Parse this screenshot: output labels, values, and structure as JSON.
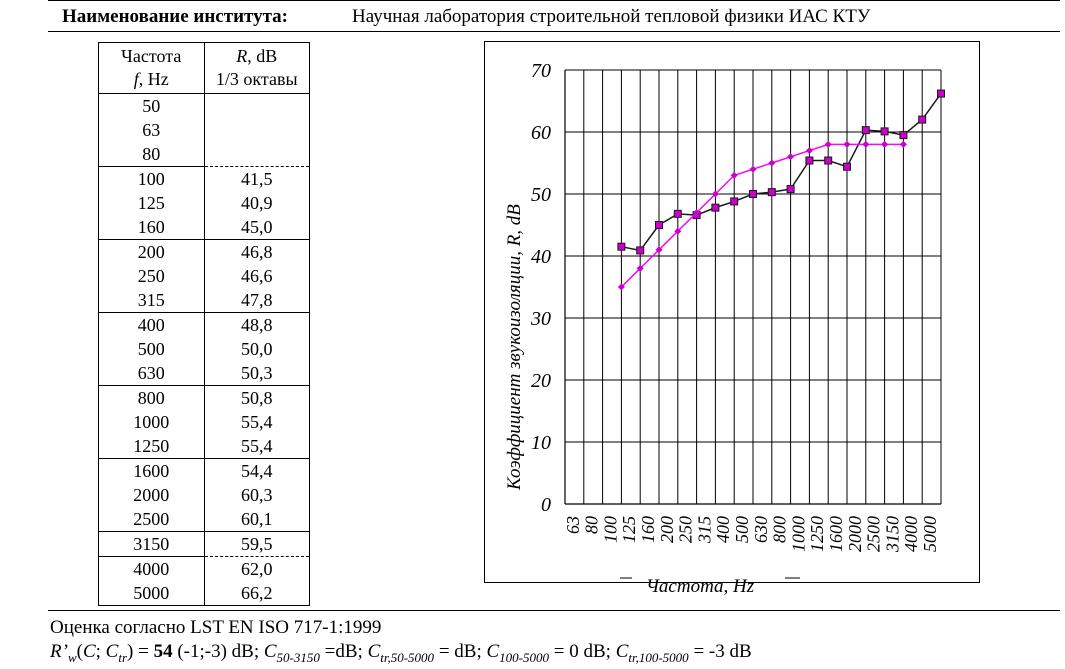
{
  "header": {
    "label": "Наименование института:",
    "value": "Научная лаборатория строительной тепловой физики ИАС КТУ"
  },
  "table": {
    "col1_head_line1": "Частота",
    "col1_head_line2_italic": "f",
    "col1_head_line2_rest": ", Hz",
    "col2_head_line1_italic": "R",
    "col2_head_line1_rest": ", dB",
    "col2_head_line2": "1/3 октавы",
    "rows": [
      {
        "f": "50",
        "r": ""
      },
      {
        "f": "63",
        "r": ""
      },
      {
        "f": "80",
        "r": ""
      },
      {
        "f": "100",
        "r": "41,5"
      },
      {
        "f": "125",
        "r": "40,9"
      },
      {
        "f": "160",
        "r": "45,0"
      },
      {
        "f": "200",
        "r": "46,8"
      },
      {
        "f": "250",
        "r": "46,6"
      },
      {
        "f": "315",
        "r": "47,8"
      },
      {
        "f": "400",
        "r": "48,8"
      },
      {
        "f": "500",
        "r": "50,0"
      },
      {
        "f": "630",
        "r": "50,3"
      },
      {
        "f": "800",
        "r": "50,8"
      },
      {
        "f": "1000",
        "r": "55,4"
      },
      {
        "f": "1250",
        "r": "55,4"
      },
      {
        "f": "1600",
        "r": "54,4"
      },
      {
        "f": "2000",
        "r": "60,3"
      },
      {
        "f": "2500",
        "r": "60,1"
      },
      {
        "f": "3150",
        "r": "59,5"
      },
      {
        "f": "4000",
        "r": "62,0"
      },
      {
        "f": "5000",
        "r": "66,2"
      }
    ]
  },
  "chart_data": {
    "type": "line",
    "xlabel": "Частота, Hz",
    "ylabel": "Коэффициент  звукоизоляции, R, dB",
    "ylim": [
      0,
      70
    ],
    "yticks": [
      "0",
      "10",
      "20",
      "30",
      "40",
      "50",
      "60",
      "70"
    ],
    "categories": [
      "63",
      "80",
      "100",
      "125",
      "160",
      "200",
      "250",
      "315",
      "400",
      "500",
      "630",
      "800",
      "1000",
      "1250",
      "1600",
      "2000",
      "2500",
      "3150",
      "4000",
      "5000"
    ],
    "grid": true,
    "series": [
      {
        "color": "#1a1a1a",
        "marker_color": "#cc00cc",
        "marker": "square",
        "x": [
          "100",
          "125",
          "160",
          "200",
          "250",
          "315",
          "400",
          "500",
          "630",
          "800",
          "1000",
          "1250",
          "1600",
          "2000",
          "2500",
          "3150",
          "4000",
          "5000"
        ],
        "values": [
          41.5,
          40.9,
          45.0,
          46.8,
          46.6,
          47.8,
          48.8,
          50.0,
          50.3,
          50.8,
          55.4,
          55.4,
          54.4,
          60.3,
          60.1,
          59.5,
          62.0,
          66.2
        ]
      },
      {
        "color": "#ff00ff",
        "marker_color": "#cc00cc",
        "marker": "diamond",
        "x": [
          "100",
          "125",
          "160",
          "200",
          "250",
          "315",
          "400",
          "500",
          "630",
          "800",
          "1000",
          "1250",
          "1600",
          "2000",
          "2500",
          "3150"
        ],
        "values": [
          35,
          38,
          41,
          44,
          47,
          50,
          53,
          54,
          55,
          56,
          57,
          58,
          58,
          58,
          58,
          58
        ]
      }
    ]
  },
  "footer": {
    "line1": "Оценка согласно LST EN ISO 717-1:1999",
    "rw_prefix": "R’",
    "rw_sub": "w",
    "rw_paren_open": "(",
    "rw_c": "C",
    "rw_semicolon": "; ",
    "rw_ctr": "C",
    "rw_ctr_sub": "tr",
    "rw_paren_close": ")",
    "rw_eq": " = ",
    "rw_value": "54",
    "rw_rest": " (-1;-3) dB; ",
    "c1": "C",
    "c1_sub": "50-3150",
    "c1_rest": " =dB; ",
    "c2": "C",
    "c2_sub": "tr,50-5000",
    "c2_rest": " = dB; ",
    "c3": "C",
    "c3_sub": "100-5000",
    "c3_rest": " = 0 dB; ",
    "c4": "C",
    "c4_sub": "tr,100-5000",
    "c4_rest": " = -3 dB"
  }
}
